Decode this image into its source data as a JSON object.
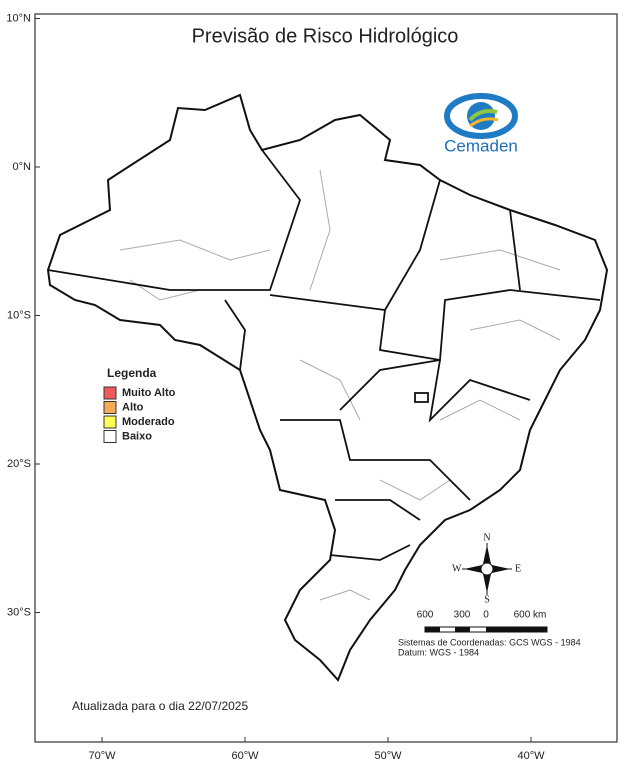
{
  "title": "Previsão de Risco Hidrológico",
  "logo": "Cemaden",
  "lat_ticks": [
    {
      "value": 10,
      "label": "10°N"
    },
    {
      "value": 0,
      "label": "0°N"
    },
    {
      "value": -10,
      "label": "10°S"
    },
    {
      "value": -20,
      "label": "20°S"
    },
    {
      "value": -30,
      "label": "30°S"
    }
  ],
  "lon_ticks": [
    {
      "value": -70,
      "label": "70°W"
    },
    {
      "value": -60,
      "label": "60°W"
    },
    {
      "value": -50,
      "label": "50°W"
    },
    {
      "value": -40,
      "label": "40°W"
    }
  ],
  "legend": {
    "title": "Legenda",
    "items": [
      {
        "label": "Muito Alto",
        "color": "#f05a5a"
      },
      {
        "label": "Alto",
        "color": "#f5ad55"
      },
      {
        "label": "Moderado",
        "color": "#ffff55"
      },
      {
        "label": "Baixo",
        "color": "#ffffff"
      }
    ]
  },
  "compass": {
    "n": "N",
    "s": "S",
    "e": "E",
    "w": "W"
  },
  "scale_labels": [
    "600",
    "300",
    "0",
    "600 km"
  ],
  "coordinate_system": "Sistemas de Coordenadas: GCS WGS - 1984",
  "datum": "Datum: WGS - 1984",
  "updated": "Atualizada para o dia 22/07/2025"
}
